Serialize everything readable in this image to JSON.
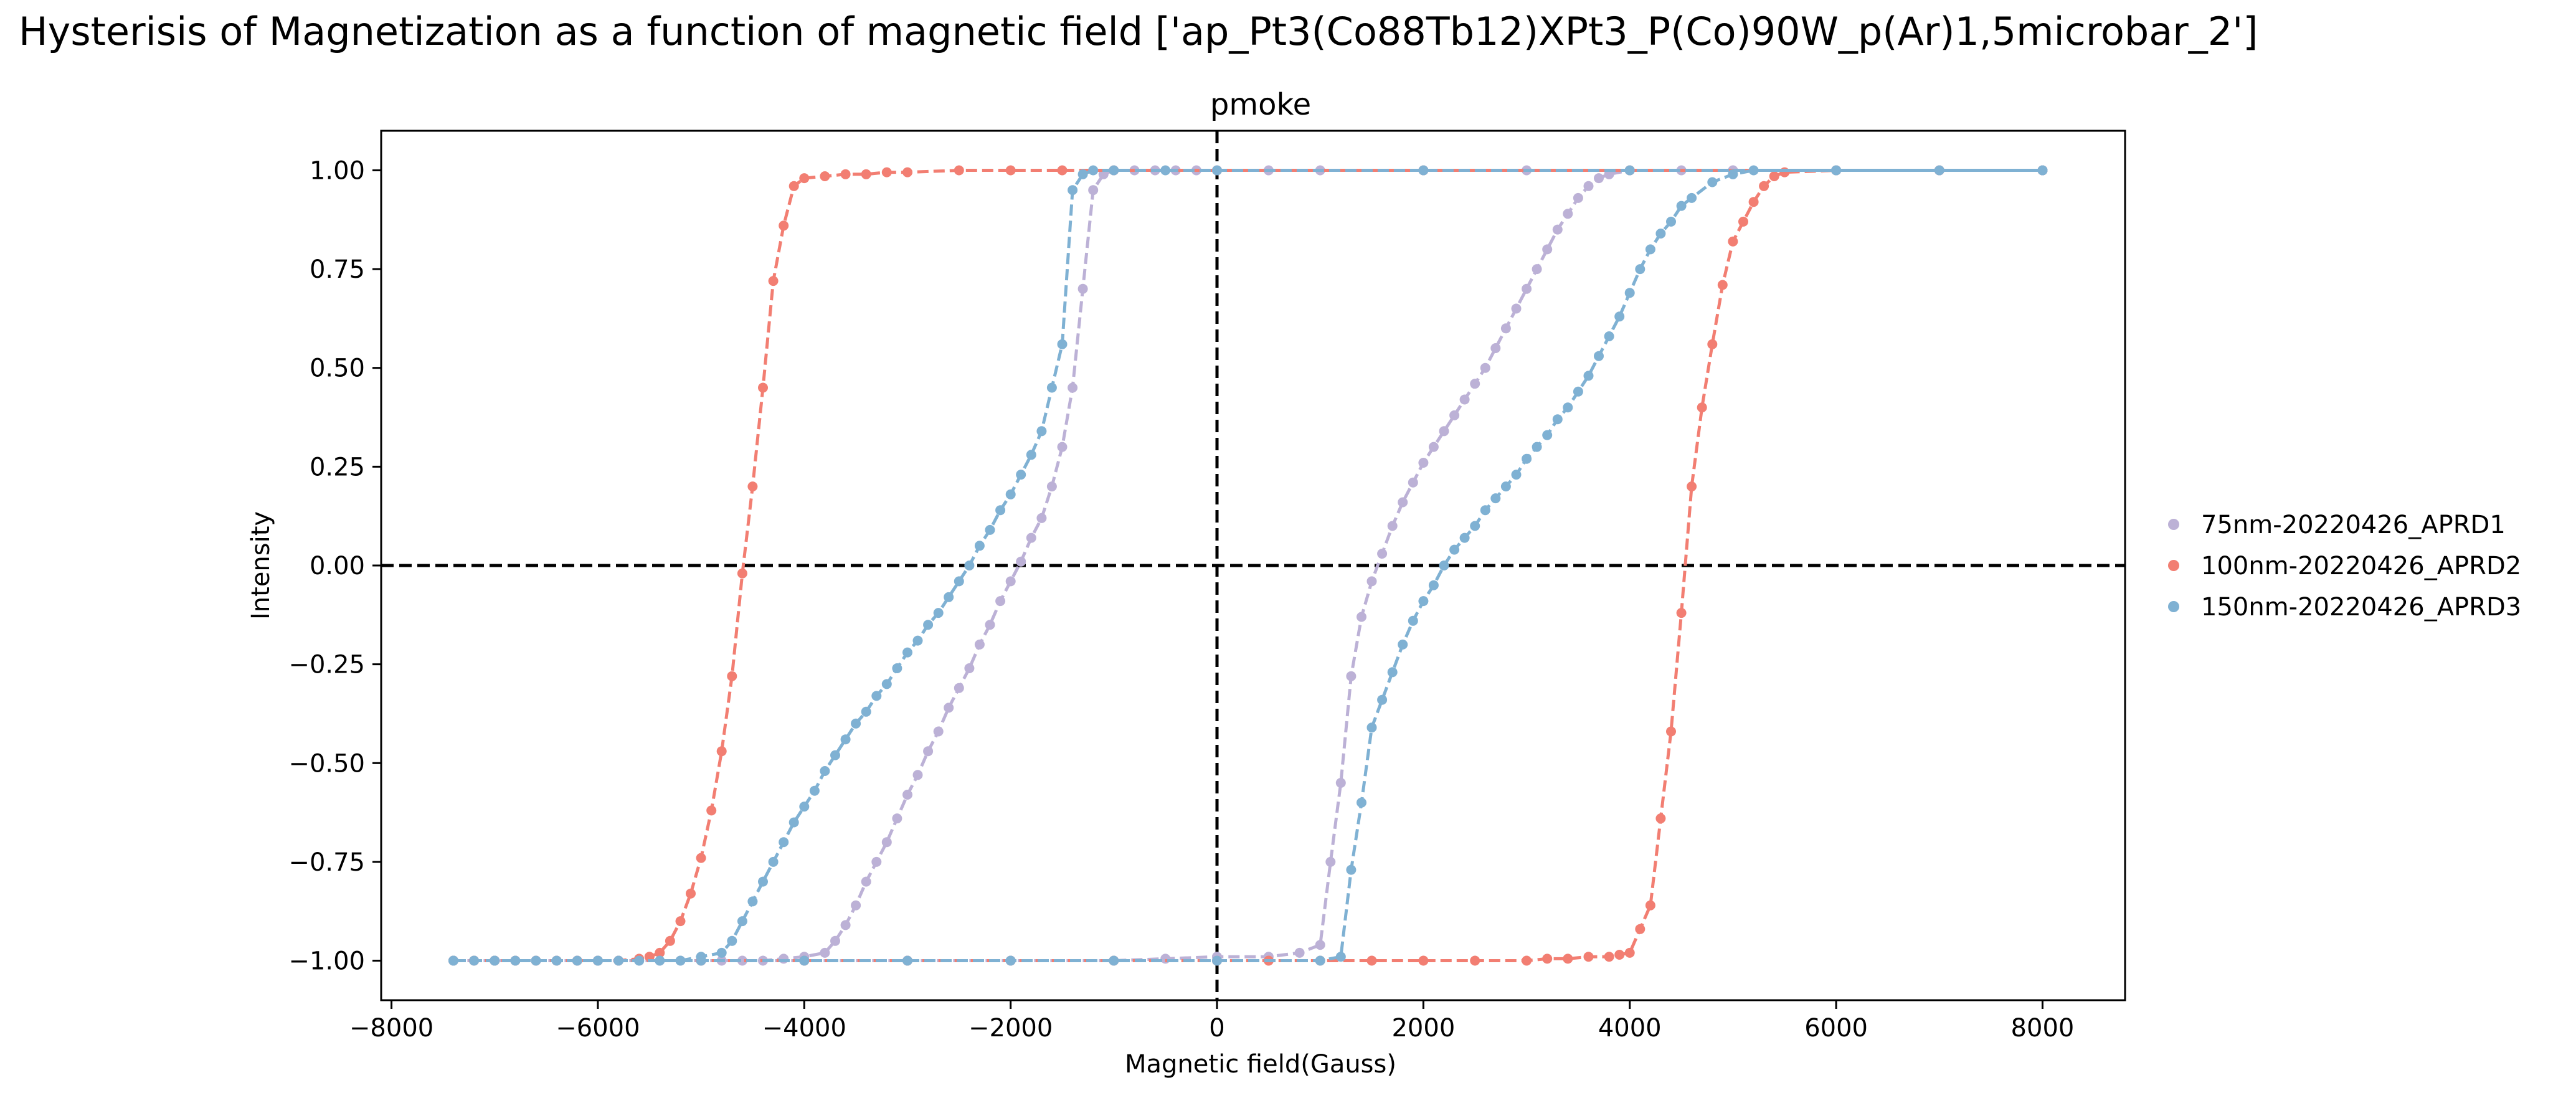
{
  "figure": {
    "title": "Hysterisis of Magnetization as a function of magnetic field ['ap_Pt3(Co88Tb12)XPt3_P(Co)90W_p(Ar)1,5microbar_2']"
  },
  "chart_data": {
    "type": "line",
    "subtitle": "pmoke",
    "xlabel": "Magnetic field(Gauss)",
    "ylabel": "Intensity",
    "xlim": [
      -8100,
      8800
    ],
    "ylim": [
      -1.1,
      1.1
    ],
    "xticks": [
      -8000,
      -6000,
      -4000,
      -2000,
      0,
      2000,
      4000,
      6000,
      8000
    ],
    "yticks": [
      -1.0,
      -0.75,
      -0.5,
      -0.25,
      0.0,
      0.25,
      0.5,
      0.75,
      1.0
    ],
    "reference_lines": {
      "x": 0,
      "y": 0,
      "style": "dashed",
      "color": "#000000"
    },
    "grid": false,
    "legend_position": "outside-right",
    "series": [
      {
        "name": "75nm-20220426_APRD1",
        "color": "#bcb1d6",
        "branches": [
          {
            "x": [
              -7400,
              -7200,
              -7000,
              -6800,
              -6600,
              -6400,
              -6200,
              -6000,
              -5800,
              -5600,
              -5400,
              -5200,
              -5000,
              -4800,
              -4600,
              -4400,
              -4200,
              -4000,
              -3800,
              -3700,
              -3600,
              -3500,
              -3400,
              -3300,
              -3200,
              -3100,
              -3000,
              -2900,
              -2800,
              -2700,
              -2600,
              -2500,
              -2400,
              -2300,
              -2200,
              -2100,
              -2000,
              -1900,
              -1800,
              -1700,
              -1600,
              -1500,
              -1400,
              -1300,
              -1200,
              -1100,
              -1000,
              -800,
              -600,
              -400,
              -200,
              0,
              500,
              1000,
              2000,
              3000,
              4000,
              5000,
              6000,
              7000,
              8000
            ],
            "y": [
              -1.0,
              -1.0,
              -1.0,
              -1.0,
              -1.0,
              -1.0,
              -1.0,
              -1.0,
              -1.0,
              -1.0,
              -1.0,
              -1.0,
              -1.0,
              -1.0,
              -1.0,
              -1.0,
              -0.995,
              -0.99,
              -0.98,
              -0.95,
              -0.91,
              -0.86,
              -0.8,
              -0.75,
              -0.7,
              -0.64,
              -0.58,
              -0.53,
              -0.47,
              -0.42,
              -0.36,
              -0.31,
              -0.26,
              -0.2,
              -0.15,
              -0.09,
              -0.04,
              0.01,
              0.07,
              0.12,
              0.2,
              0.3,
              0.45,
              0.7,
              0.95,
              0.99,
              1.0,
              1.0,
              1.0,
              1.0,
              1.0,
              1.0,
              1.0,
              1.0,
              1.0,
              1.0,
              1.0,
              1.0,
              1.0,
              1.0,
              1.0
            ]
          },
          {
            "x": [
              8000,
              7000,
              6000,
              5000,
              4500,
              4000,
              3800,
              3700,
              3600,
              3500,
              3400,
              3300,
              3200,
              3100,
              3000,
              2900,
              2800,
              2700,
              2600,
              2500,
              2400,
              2300,
              2200,
              2100,
              2000,
              1900,
              1800,
              1700,
              1600,
              1500,
              1400,
              1300,
              1200,
              1100,
              1000,
              800,
              500,
              0,
              -500,
              -1000,
              -2000,
              -3000,
              -4000,
              -5000,
              -6000,
              -7000,
              -7400
            ],
            "y": [
              1.0,
              1.0,
              1.0,
              1.0,
              1.0,
              1.0,
              0.99,
              0.98,
              0.96,
              0.93,
              0.89,
              0.85,
              0.8,
              0.75,
              0.7,
              0.65,
              0.6,
              0.55,
              0.5,
              0.46,
              0.42,
              0.38,
              0.34,
              0.3,
              0.26,
              0.21,
              0.16,
              0.1,
              0.03,
              -0.04,
              -0.13,
              -0.28,
              -0.55,
              -0.75,
              -0.96,
              -0.98,
              -0.99,
              -0.99,
              -0.995,
              -1.0,
              -1.0,
              -1.0,
              -1.0,
              -1.0,
              -1.0,
              -1.0,
              -1.0
            ]
          }
        ]
      },
      {
        "name": "100nm-20220426_APRD2",
        "color": "#f27e72",
        "branches": [
          {
            "x": [
              -7400,
              -7200,
              -7000,
              -6800,
              -6600,
              -6400,
              -6200,
              -6000,
              -5800,
              -5600,
              -5500,
              -5400,
              -5300,
              -5200,
              -5100,
              -5000,
              -4900,
              -4800,
              -4700,
              -4600,
              -4500,
              -4400,
              -4300,
              -4200,
              -4100,
              -4000,
              -3800,
              -3600,
              -3400,
              -3200,
              -3000,
              -2500,
              -2000,
              -1500,
              -1000,
              0,
              2000,
              4000,
              6000,
              8000
            ],
            "y": [
              -1.0,
              -1.0,
              -1.0,
              -1.0,
              -1.0,
              -1.0,
              -1.0,
              -1.0,
              -1.0,
              -0.995,
              -0.99,
              -0.98,
              -0.95,
              -0.9,
              -0.83,
              -0.74,
              -0.62,
              -0.47,
              -0.28,
              -0.02,
              0.2,
              0.45,
              0.72,
              0.86,
              0.96,
              0.98,
              0.985,
              0.99,
              0.99,
              0.995,
              0.995,
              1.0,
              1.0,
              1.0,
              1.0,
              1.0,
              1.0,
              1.0,
              1.0,
              1.0
            ]
          },
          {
            "x": [
              8000,
              7000,
              6000,
              5500,
              5400,
              5300,
              5200,
              5100,
              5000,
              4900,
              4800,
              4700,
              4600,
              4500,
              4400,
              4300,
              4200,
              4100,
              4000,
              3900,
              3800,
              3600,
              3400,
              3200,
              3000,
              2500,
              2000,
              1500,
              1000,
              500,
              0,
              -1000,
              -2000,
              -3000,
              -4000,
              -5000,
              -6000,
              -7000,
              -7400
            ],
            "y": [
              1.0,
              1.0,
              1.0,
              0.995,
              0.985,
              0.96,
              0.92,
              0.87,
              0.82,
              0.71,
              0.56,
              0.4,
              0.2,
              -0.12,
              -0.42,
              -0.64,
              -0.86,
              -0.92,
              -0.98,
              -0.985,
              -0.99,
              -0.99,
              -0.995,
              -0.995,
              -1.0,
              -1.0,
              -1.0,
              -1.0,
              -1.0,
              -1.0,
              -1.0,
              -1.0,
              -1.0,
              -1.0,
              -1.0,
              -1.0,
              -1.0,
              -1.0,
              -1.0
            ]
          }
        ]
      },
      {
        "name": "150nm-20220426_APRD3",
        "color": "#7fb1d3",
        "branches": [
          {
            "x": [
              -7400,
              -7200,
              -7000,
              -6800,
              -6600,
              -6400,
              -6200,
              -6000,
              -5800,
              -5600,
              -5400,
              -5200,
              -5000,
              -4800,
              -4700,
              -4600,
              -4500,
              -4400,
              -4300,
              -4200,
              -4100,
              -4000,
              -3900,
              -3800,
              -3700,
              -3600,
              -3500,
              -3400,
              -3300,
              -3200,
              -3100,
              -3000,
              -2900,
              -2800,
              -2700,
              -2600,
              -2500,
              -2400,
              -2300,
              -2200,
              -2100,
              -2000,
              -1900,
              -1800,
              -1700,
              -1600,
              -1500,
              -1400,
              -1300,
              -1200,
              -1000,
              -500,
              0,
              2000,
              4000,
              6000,
              8000
            ],
            "y": [
              -1.0,
              -1.0,
              -1.0,
              -1.0,
              -1.0,
              -1.0,
              -1.0,
              -1.0,
              -1.0,
              -1.0,
              -1.0,
              -1.0,
              -0.99,
              -0.98,
              -0.95,
              -0.9,
              -0.85,
              -0.8,
              -0.75,
              -0.7,
              -0.65,
              -0.61,
              -0.57,
              -0.52,
              -0.48,
              -0.44,
              -0.4,
              -0.37,
              -0.33,
              -0.3,
              -0.26,
              -0.22,
              -0.19,
              -0.15,
              -0.12,
              -0.08,
              -0.04,
              0.0,
              0.05,
              0.09,
              0.14,
              0.18,
              0.23,
              0.28,
              0.34,
              0.45,
              0.56,
              0.95,
              0.99,
              1.0,
              1.0,
              1.0,
              1.0,
              1.0,
              1.0,
              1.0,
              1.0
            ]
          },
          {
            "x": [
              8000,
              7000,
              6000,
              5200,
              5000,
              4800,
              4600,
              4500,
              4400,
              4300,
              4200,
              4100,
              4000,
              3900,
              3800,
              3700,
              3600,
              3500,
              3400,
              3300,
              3200,
              3100,
              3000,
              2900,
              2800,
              2700,
              2600,
              2500,
              2400,
              2300,
              2200,
              2100,
              2000,
              1900,
              1800,
              1700,
              1600,
              1500,
              1400,
              1300,
              1200,
              1000,
              0,
              -1000,
              -2000,
              -3000,
              -4000,
              -5000,
              -6000,
              -7000,
              -7400
            ],
            "y": [
              1.0,
              1.0,
              1.0,
              1.0,
              0.99,
              0.97,
              0.93,
              0.91,
              0.87,
              0.84,
              0.8,
              0.75,
              0.69,
              0.63,
              0.58,
              0.53,
              0.48,
              0.44,
              0.4,
              0.37,
              0.33,
              0.3,
              0.27,
              0.23,
              0.2,
              0.17,
              0.14,
              0.1,
              0.07,
              0.04,
              0.0,
              -0.05,
              -0.09,
              -0.14,
              -0.2,
              -0.27,
              -0.34,
              -0.41,
              -0.6,
              -0.77,
              -0.99,
              -1.0,
              -1.0,
              -1.0,
              -1.0,
              -1.0,
              -1.0,
              -1.0,
              -1.0,
              -1.0,
              -1.0
            ]
          }
        ]
      }
    ]
  }
}
